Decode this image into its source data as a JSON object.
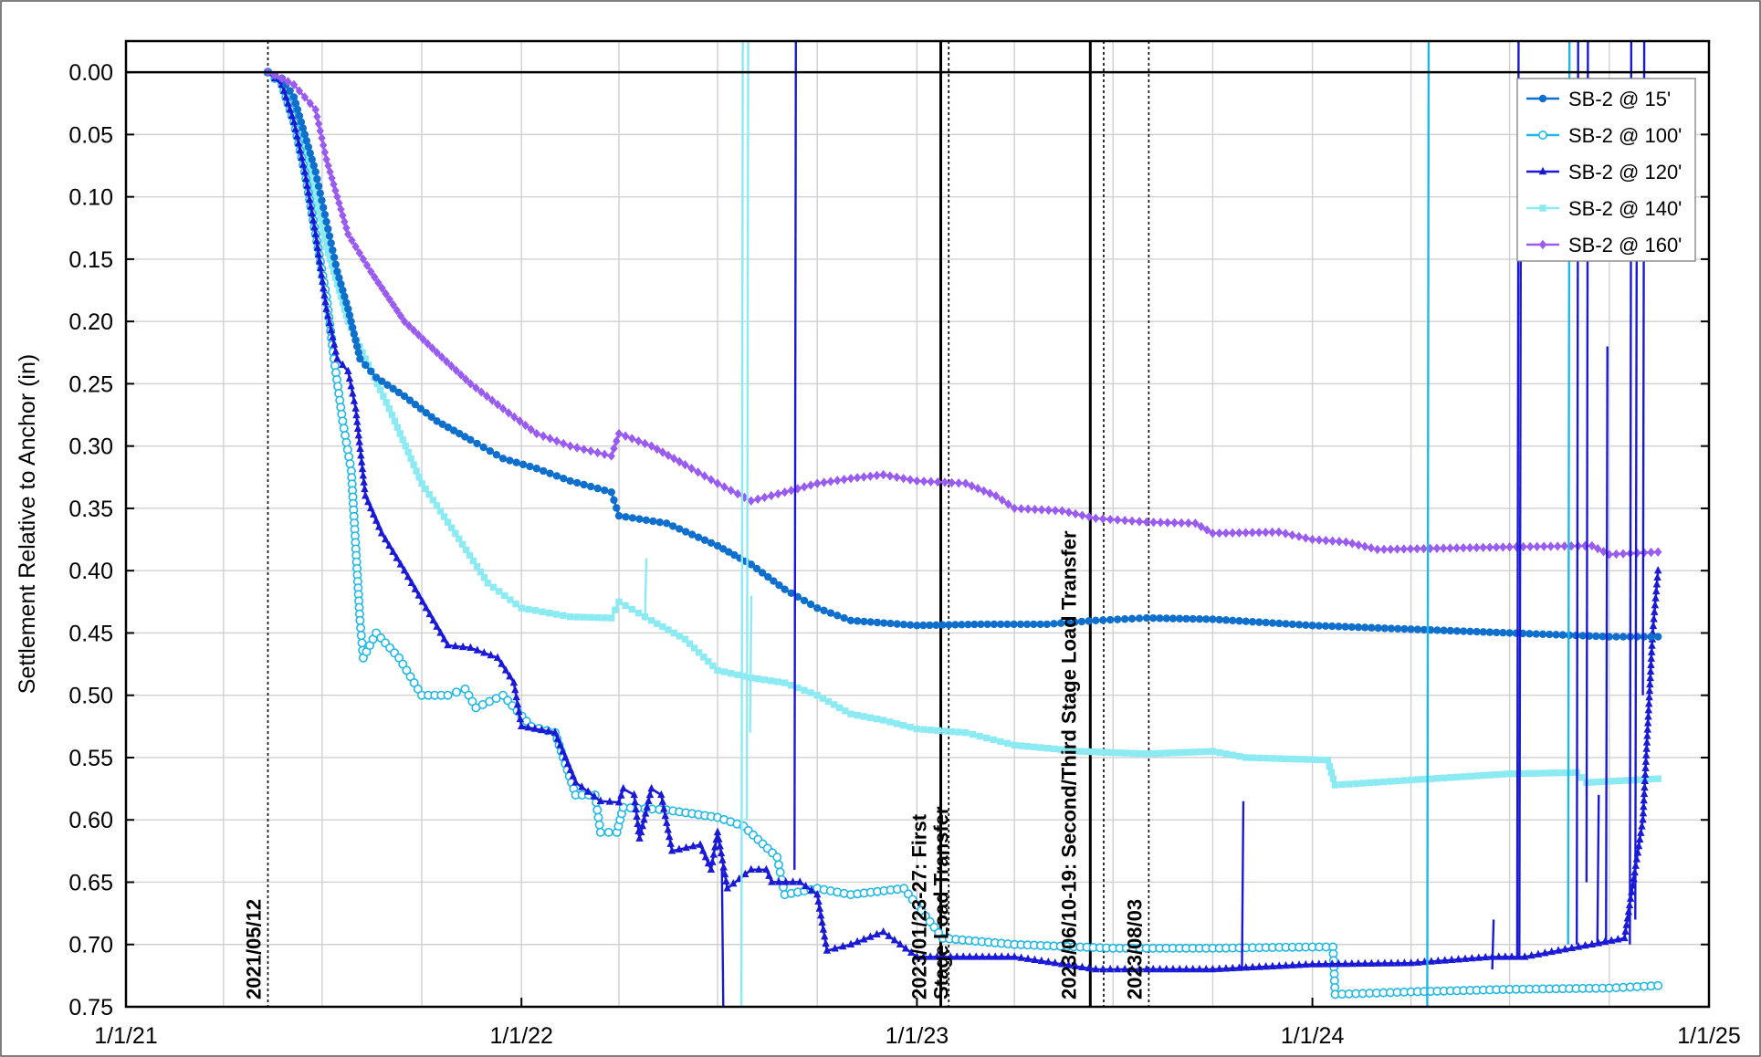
{
  "chart_data": {
    "type": "line",
    "ylabel": "Settlement Relative to Anchor (in)",
    "xlabel": "",
    "title": "",
    "x_range": [
      "2021-01-01",
      "2025-01-01"
    ],
    "x_ticks": [
      {
        "date": "2021-01-01",
        "label": "1/1/21"
      },
      {
        "date": "2022-01-01",
        "label": "1/1/22"
      },
      {
        "date": "2023-01-01",
        "label": "1/1/23"
      },
      {
        "date": "2024-01-01",
        "label": "1/1/24"
      },
      {
        "date": "2025-01-01",
        "label": "1/1/25"
      }
    ],
    "x_minor_gridlines_months": 3,
    "ylim": [
      0.75,
      -0.025
    ],
    "y_inverted": true,
    "y_ticks": [
      "0.00",
      "0.05",
      "0.10",
      "0.15",
      "0.20",
      "0.25",
      "0.30",
      "0.35",
      "0.40",
      "0.45",
      "0.50",
      "0.55",
      "0.60",
      "0.65",
      "0.70",
      "0.75"
    ],
    "grid": true,
    "legend_position": "top-right",
    "events": [
      {
        "label": "2021/05/12",
        "date": "2021-05-12",
        "style": "dotted"
      },
      {
        "label": "2023/01/23-27: First",
        "label2": "Stage Load Transfer",
        "date": "2023-01-23",
        "date_end": "2023-01-27",
        "style": "solid+dotted"
      },
      {
        "label": "2023/06/10-19: Second/Third Stage Load Transfer",
        "date": "2023-06-10",
        "date_end": "2023-06-19",
        "style": "solid+dotted"
      },
      {
        "label": "2023/08/03",
        "date": "2023-08-03",
        "style": "dotted"
      }
    ],
    "series": [
      {
        "name": "SB-2 @ 15'",
        "color": "#0f6fcc",
        "marker": "circle-filled",
        "points": [
          [
            "2021-05-12",
            0.0
          ],
          [
            "2021-05-25",
            0.005
          ],
          [
            "2021-06-05",
            0.02
          ],
          [
            "2021-06-15",
            0.05
          ],
          [
            "2021-06-25",
            0.08
          ],
          [
            "2021-07-05",
            0.12
          ],
          [
            "2021-07-15",
            0.16
          ],
          [
            "2021-07-25",
            0.19
          ],
          [
            "2021-08-05",
            0.23
          ],
          [
            "2021-08-20",
            0.245
          ],
          [
            "2021-09-15",
            0.26
          ],
          [
            "2021-10-15",
            0.28
          ],
          [
            "2021-11-15",
            0.295
          ],
          [
            "2021-12-15",
            0.31
          ],
          [
            "2022-01-15",
            0.318
          ],
          [
            "2022-02-15",
            0.328
          ],
          [
            "2022-03-25",
            0.337
          ],
          [
            "2022-04-01",
            0.356
          ],
          [
            "2022-05-15",
            0.362
          ],
          [
            "2022-07-01",
            0.38
          ],
          [
            "2022-08-01",
            0.395
          ],
          [
            "2022-09-01",
            0.415
          ],
          [
            "2022-10-01",
            0.43
          ],
          [
            "2022-11-01",
            0.44
          ],
          [
            "2023-01-01",
            0.444
          ],
          [
            "2023-03-01",
            0.443
          ],
          [
            "2023-05-01",
            0.443
          ],
          [
            "2023-06-15",
            0.44
          ],
          [
            "2023-08-01",
            0.438
          ],
          [
            "2023-10-01",
            0.439
          ],
          [
            "2024-01-01",
            0.444
          ],
          [
            "2024-04-01",
            0.447
          ],
          [
            "2024-07-01",
            0.45
          ],
          [
            "2024-10-01",
            0.453
          ],
          [
            "2024-11-15",
            0.453
          ]
        ]
      },
      {
        "name": "SB-2 @ 100'",
        "color": "#1fb8e6",
        "marker": "circle-open",
        "points": [
          [
            "2021-05-12",
            0.0
          ],
          [
            "2021-05-25",
            0.01
          ],
          [
            "2021-06-05",
            0.04
          ],
          [
            "2021-06-15",
            0.08
          ],
          [
            "2021-06-25",
            0.13
          ],
          [
            "2021-07-05",
            0.18
          ],
          [
            "2021-07-12",
            0.23
          ],
          [
            "2021-07-20",
            0.28
          ],
          [
            "2021-07-28",
            0.32
          ],
          [
            "2021-08-05",
            0.44
          ],
          [
            "2021-08-08",
            0.47
          ],
          [
            "2021-08-20",
            0.45
          ],
          [
            "2021-09-10",
            0.47
          ],
          [
            "2021-10-01",
            0.5
          ],
          [
            "2021-10-25",
            0.5
          ],
          [
            "2021-11-10",
            0.495
          ],
          [
            "2021-11-20",
            0.51
          ],
          [
            "2021-12-15",
            0.5
          ],
          [
            "2022-01-10",
            0.525
          ],
          [
            "2022-02-01",
            0.53
          ],
          [
            "2022-02-20",
            0.58
          ],
          [
            "2022-03-10",
            0.58
          ],
          [
            "2022-03-15",
            0.61
          ],
          [
            "2022-03-30",
            0.61
          ],
          [
            "2022-04-05",
            0.59
          ],
          [
            "2022-05-15",
            0.592
          ],
          [
            "2022-07-01",
            0.598
          ],
          [
            "2022-07-25",
            0.605
          ],
          [
            "2022-08-25",
            0.63
          ],
          [
            "2022-09-01",
            0.66
          ],
          [
            "2022-10-01",
            0.655
          ],
          [
            "2022-11-01",
            0.66
          ],
          [
            "2022-12-20",
            0.655
          ],
          [
            "2023-01-25",
            0.695
          ],
          [
            "2023-04-01",
            0.7
          ],
          [
            "2023-07-01",
            0.703
          ],
          [
            "2023-10-01",
            0.703
          ],
          [
            "2024-01-01",
            0.702
          ],
          [
            "2024-01-20",
            0.702
          ],
          [
            "2024-01-22",
            0.74
          ],
          [
            "2024-04-01",
            0.738
          ],
          [
            "2024-07-01",
            0.736
          ],
          [
            "2024-10-01",
            0.735
          ],
          [
            "2024-11-15",
            0.733
          ]
        ]
      },
      {
        "name": "SB-2 @ 120'",
        "color": "#1a1ad6",
        "marker": "triangle",
        "points": [
          [
            "2021-05-12",
            0.0
          ],
          [
            "2021-05-25",
            0.01
          ],
          [
            "2021-06-05",
            0.04
          ],
          [
            "2021-06-15",
            0.08
          ],
          [
            "2021-06-25",
            0.13
          ],
          [
            "2021-07-05",
            0.19
          ],
          [
            "2021-07-15",
            0.23
          ],
          [
            "2021-07-25",
            0.24
          ],
          [
            "2021-08-01",
            0.27
          ],
          [
            "2021-08-10",
            0.34
          ],
          [
            "2021-08-25",
            0.37
          ],
          [
            "2021-09-15",
            0.4
          ],
          [
            "2021-10-05",
            0.43
          ],
          [
            "2021-10-25",
            0.46
          ],
          [
            "2021-11-15",
            0.462
          ],
          [
            "2021-12-10",
            0.47
          ],
          [
            "2021-12-25",
            0.49
          ],
          [
            "2022-01-01",
            0.525
          ],
          [
            "2022-02-01",
            0.53
          ],
          [
            "2022-02-20",
            0.57
          ],
          [
            "2022-03-15",
            0.585
          ],
          [
            "2022-04-01",
            0.586
          ],
          [
            "2022-04-05",
            0.575
          ],
          [
            "2022-04-15",
            0.58
          ],
          [
            "2022-04-20",
            0.615
          ],
          [
            "2022-05-01",
            0.575
          ],
          [
            "2022-05-10",
            0.58
          ],
          [
            "2022-05-20",
            0.625
          ],
          [
            "2022-06-15",
            0.62
          ],
          [
            "2022-06-25",
            0.64
          ],
          [
            "2022-07-01",
            0.61
          ],
          [
            "2022-07-10",
            0.655
          ],
          [
            "2022-08-01",
            0.64
          ],
          [
            "2022-08-15",
            0.64
          ],
          [
            "2022-08-20",
            0.65
          ],
          [
            "2022-09-15",
            0.65
          ],
          [
            "2022-10-01",
            0.66
          ],
          [
            "2022-10-10",
            0.705
          ],
          [
            "2022-11-01",
            0.7
          ],
          [
            "2022-12-01",
            0.69
          ],
          [
            "2023-01-01",
            0.71
          ],
          [
            "2023-02-01",
            0.71
          ],
          [
            "2023-04-01",
            0.71
          ],
          [
            "2023-06-15",
            0.72
          ],
          [
            "2023-08-01",
            0.72
          ],
          [
            "2023-10-01",
            0.72
          ],
          [
            "2024-01-01",
            0.716
          ],
          [
            "2024-04-01",
            0.715
          ],
          [
            "2024-06-15",
            0.71
          ],
          [
            "2024-07-15",
            0.71
          ],
          [
            "2024-08-15",
            0.705
          ],
          [
            "2024-09-15",
            0.7
          ],
          [
            "2024-10-15",
            0.695
          ],
          [
            "2024-11-01",
            0.6
          ],
          [
            "2024-11-10",
            0.45
          ],
          [
            "2024-11-15",
            0.4
          ]
        ]
      },
      {
        "name": "SB-2 @ 140'",
        "color": "#8ceaf2",
        "marker": "square",
        "points": [
          [
            "2021-05-12",
            0.0
          ],
          [
            "2021-05-25",
            0.01
          ],
          [
            "2021-06-05",
            0.03
          ],
          [
            "2021-06-15",
            0.06
          ],
          [
            "2021-06-25",
            0.1
          ],
          [
            "2021-07-05",
            0.14
          ],
          [
            "2021-07-15",
            0.17
          ],
          [
            "2021-07-25",
            0.2
          ],
          [
            "2021-08-10",
            0.23
          ],
          [
            "2021-09-01",
            0.27
          ],
          [
            "2021-10-01",
            0.33
          ],
          [
            "2021-11-01",
            0.37
          ],
          [
            "2021-12-01",
            0.41
          ],
          [
            "2022-01-01",
            0.43
          ],
          [
            "2022-02-15",
            0.437
          ],
          [
            "2022-03-25",
            0.438
          ],
          [
            "2022-04-01",
            0.425
          ],
          [
            "2022-05-01",
            0.44
          ],
          [
            "2022-06-01",
            0.455
          ],
          [
            "2022-07-01",
            0.48
          ],
          [
            "2022-08-01",
            0.486
          ],
          [
            "2022-09-01",
            0.49
          ],
          [
            "2022-10-01",
            0.5
          ],
          [
            "2022-11-01",
            0.515
          ],
          [
            "2022-12-01",
            0.52
          ],
          [
            "2023-01-01",
            0.527
          ],
          [
            "2023-02-15",
            0.53
          ],
          [
            "2023-04-01",
            0.54
          ],
          [
            "2023-06-01",
            0.545
          ],
          [
            "2023-08-01",
            0.547
          ],
          [
            "2023-10-01",
            0.545
          ],
          [
            "2023-11-01",
            0.55
          ],
          [
            "2024-01-15",
            0.552
          ],
          [
            "2024-01-22",
            0.572
          ],
          [
            "2024-04-01",
            0.568
          ],
          [
            "2024-07-01",
            0.563
          ],
          [
            "2024-09-01",
            0.562
          ],
          [
            "2024-09-10",
            0.57
          ],
          [
            "2024-11-15",
            0.567
          ]
        ]
      },
      {
        "name": "SB-2 @ 160'",
        "color": "#9a5cf0",
        "marker": "diamond",
        "points": [
          [
            "2021-05-12",
            0.0
          ],
          [
            "2021-05-25",
            0.005
          ],
          [
            "2021-06-05",
            0.01
          ],
          [
            "2021-06-15",
            0.02
          ],
          [
            "2021-06-25",
            0.03
          ],
          [
            "2021-07-05",
            0.07
          ],
          [
            "2021-07-15",
            0.1
          ],
          [
            "2021-07-25",
            0.13
          ],
          [
            "2021-08-15",
            0.16
          ],
          [
            "2021-09-15",
            0.2
          ],
          [
            "2021-10-15",
            0.225
          ],
          [
            "2021-11-15",
            0.25
          ],
          [
            "2021-12-15",
            0.27
          ],
          [
            "2022-01-15",
            0.29
          ],
          [
            "2022-02-15",
            0.3
          ],
          [
            "2022-03-25",
            0.308
          ],
          [
            "2022-04-01",
            0.29
          ],
          [
            "2022-05-01",
            0.3
          ],
          [
            "2022-06-01",
            0.315
          ],
          [
            "2022-07-01",
            0.33
          ],
          [
            "2022-08-01",
            0.344
          ],
          [
            "2022-09-01",
            0.337
          ],
          [
            "2022-10-01",
            0.33
          ],
          [
            "2022-11-01",
            0.326
          ],
          [
            "2022-12-01",
            0.323
          ],
          [
            "2023-01-01",
            0.328
          ],
          [
            "2023-02-15",
            0.33
          ],
          [
            "2023-03-15",
            0.34
          ],
          [
            "2023-04-01",
            0.35
          ],
          [
            "2023-05-15",
            0.352
          ],
          [
            "2023-06-15",
            0.358
          ],
          [
            "2023-08-01",
            0.361
          ],
          [
            "2023-09-15",
            0.362
          ],
          [
            "2023-10-01",
            0.37
          ],
          [
            "2023-12-01",
            0.369
          ],
          [
            "2024-01-01",
            0.375
          ],
          [
            "2024-02-01",
            0.377
          ],
          [
            "2024-03-01",
            0.383
          ],
          [
            "2024-07-01",
            0.381
          ],
          [
            "2024-09-15",
            0.38
          ],
          [
            "2024-10-01",
            0.387
          ],
          [
            "2024-11-15",
            0.385
          ]
        ]
      }
    ],
    "spikes": [
      {
        "series": 3,
        "date": "2022-07-23",
        "from": 0.75,
        "to": -0.025
      },
      {
        "series": 3,
        "date": "2022-07-28",
        "from": 0.6,
        "to": -0.025
      },
      {
        "series": 3,
        "date": "2022-07-31",
        "from": 0.53,
        "to": 0.42
      },
      {
        "series": 2,
        "date": "2022-07-05",
        "from": 0.64,
        "to": 0.75
      },
      {
        "series": 2,
        "date": "2022-09-10",
        "from": 0.64,
        "to": -0.025
      },
      {
        "series": 3,
        "date": "2022-04-25",
        "from": 0.44,
        "to": 0.39
      },
      {
        "series": 1,
        "date": "2024-04-16",
        "from": 0.75,
        "to": -0.025
      },
      {
        "series": 1,
        "date": "2024-08-24",
        "from": 0.7,
        "to": -0.025
      },
      {
        "series": 2,
        "date": "2024-07-08",
        "from": 0.71,
        "to": -0.025
      },
      {
        "series": 2,
        "date": "2024-07-10",
        "from": 0.71,
        "to": 0.15
      },
      {
        "series": 2,
        "date": "2024-09-01",
        "from": 0.7,
        "to": -0.025
      },
      {
        "series": 2,
        "date": "2024-09-10",
        "from": 0.65,
        "to": -0.025
      },
      {
        "series": 2,
        "date": "2024-10-20",
        "from": 0.7,
        "to": -0.025
      },
      {
        "series": 2,
        "date": "2024-10-25",
        "from": 0.68,
        "to": 0.15
      },
      {
        "series": 2,
        "date": "2024-11-01",
        "from": 0.5,
        "to": -0.025
      },
      {
        "series": 2,
        "date": "2023-10-28",
        "from": 0.72,
        "to": 0.585
      },
      {
        "series": 2,
        "date": "2024-06-15",
        "from": 0.72,
        "to": 0.68
      },
      {
        "series": 2,
        "date": "2024-09-20",
        "from": 0.7,
        "to": 0.58
      },
      {
        "series": 2,
        "date": "2024-09-28",
        "from": 0.7,
        "to": 0.22
      }
    ]
  }
}
